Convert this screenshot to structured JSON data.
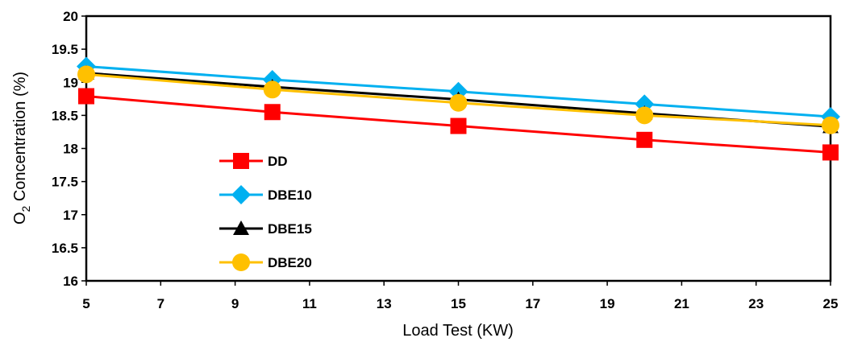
{
  "chart_data": {
    "type": "line",
    "title": "",
    "xlabel": "Load Test (KW)",
    "ylabel_main": "O",
    "ylabel_sub": "2",
    "ylabel_rest": " Concentration (%)",
    "ylabel": "O2 Concentration (%)",
    "x": [
      5,
      10,
      15,
      20,
      25
    ],
    "xlim": [
      5,
      25
    ],
    "ylim": [
      16,
      20
    ],
    "xticks": [
      "5",
      "7",
      "9",
      "11",
      "13",
      "15",
      "17",
      "19",
      "21",
      "23",
      "25"
    ],
    "yticks": [
      "16",
      "16.5",
      "17",
      "17.5",
      "18",
      "18.5",
      "19",
      "19.5",
      "20"
    ],
    "grid": false,
    "legend_position": "inside-left",
    "series": [
      {
        "name": "DD",
        "marker": "square",
        "color": "#ff0000",
        "values": [
          18.79,
          18.55,
          18.34,
          18.13,
          17.94
        ]
      },
      {
        "name": "DBE10",
        "marker": "diamond",
        "color": "#00b0f0",
        "values": [
          19.24,
          19.04,
          18.86,
          18.67,
          18.48
        ]
      },
      {
        "name": "DBE15",
        "marker": "triangle",
        "color": "#000000",
        "values": [
          19.14,
          18.93,
          18.74,
          18.53,
          18.33
        ]
      },
      {
        "name": "DBE20",
        "marker": "circle",
        "color": "#ffc000",
        "values": [
          19.12,
          18.89,
          18.69,
          18.5,
          18.35
        ]
      }
    ]
  }
}
